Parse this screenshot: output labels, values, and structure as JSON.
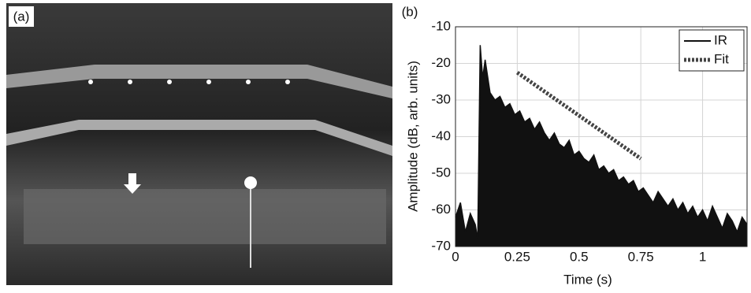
{
  "panel_a": {
    "label": "(a)"
  },
  "chart_data": {
    "type": "line",
    "panel_label": "(b)",
    "x_label": "Time (s)",
    "y_label": "Amplitude (dB, arb. units)",
    "xlim": [
      0,
      1.18
    ],
    "ylim": [
      -70,
      -10
    ],
    "xticks": [
      0,
      0.25,
      0.5,
      0.75,
      1
    ],
    "yticks": [
      -70,
      -60,
      -50,
      -40,
      -30,
      -20,
      -10
    ],
    "grid": true,
    "legend": "upper-right",
    "fill_under": true,
    "series": [
      {
        "name": "IR",
        "color": "#111111",
        "dashed": false,
        "x": [
          0,
          0.02,
          0.04,
          0.06,
          0.08,
          0.09,
          0.1,
          0.11,
          0.12,
          0.14,
          0.16,
          0.18,
          0.2,
          0.22,
          0.24,
          0.26,
          0.28,
          0.3,
          0.32,
          0.34,
          0.36,
          0.38,
          0.4,
          0.42,
          0.44,
          0.46,
          0.48,
          0.5,
          0.52,
          0.54,
          0.56,
          0.58,
          0.6,
          0.62,
          0.64,
          0.66,
          0.68,
          0.7,
          0.72,
          0.74,
          0.76,
          0.78,
          0.8,
          0.82,
          0.84,
          0.86,
          0.88,
          0.9,
          0.92,
          0.94,
          0.96,
          0.98,
          1,
          1.02,
          1.04,
          1.06,
          1.08,
          1.1,
          1.12,
          1.14,
          1.16,
          1.18
        ],
        "values": [
          -62,
          -58,
          -66,
          -61,
          -64,
          -68,
          -15,
          -24,
          -19,
          -28,
          -30,
          -29,
          -32,
          -31,
          -34,
          -33,
          -36,
          -35,
          -38,
          -36,
          -39,
          -41,
          -39,
          -42,
          -43,
          -41,
          -45,
          -44,
          -46,
          -47,
          -45,
          -49,
          -48,
          -50,
          -49,
          -52,
          -51,
          -53,
          -52,
          -55,
          -54,
          -56,
          -58,
          -55,
          -57,
          -59,
          -57,
          -60,
          -58,
          -61,
          -59,
          -62,
          -60,
          -63,
          -59,
          -62,
          -65,
          -61,
          -63,
          -66,
          -62,
          -64
        ]
      },
      {
        "name": "Fit",
        "color": "#444444",
        "dashed": true,
        "x": [
          0.25,
          0.75
        ],
        "values": [
          -22.5,
          -46
        ]
      }
    ]
  }
}
